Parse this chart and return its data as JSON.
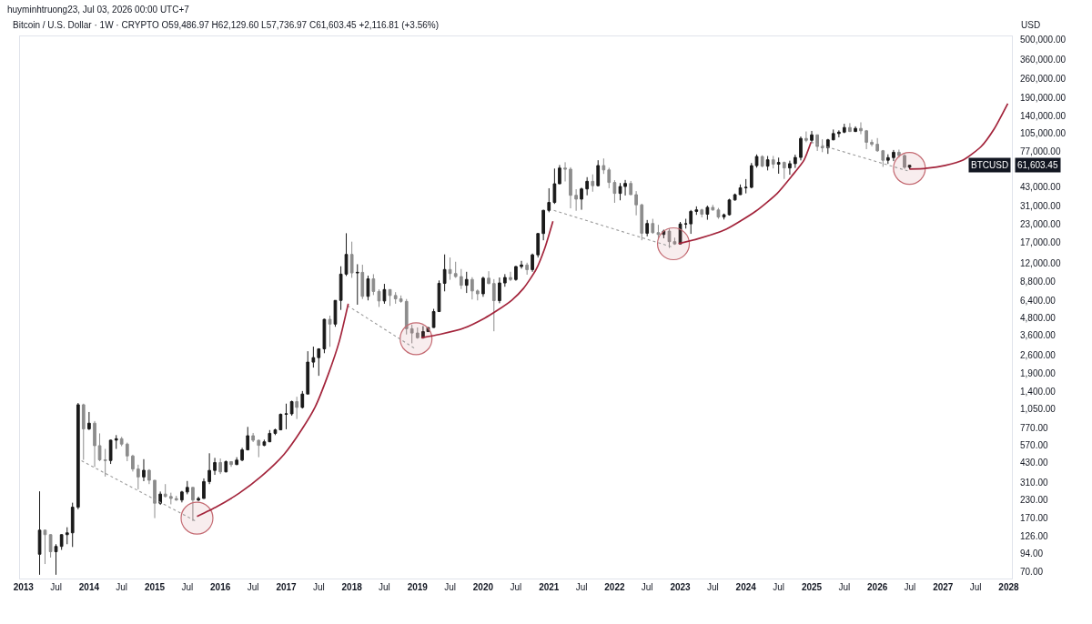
{
  "chart_data": {
    "type": "candlestick",
    "title": "huyminhtruong23, Jul 03, 2026 00:00 UTC+7",
    "subtitle": "Bitcoin / U.S. Dollar · 1W · CRYPTO O59,486.97 H62,129.60 L57,736.97 C61,603.45 +2,116.81 (+3.56%)",
    "ylabel": "USD",
    "log": true,
    "grid": false,
    "xlim": [
      "2012-12-13",
      "2028-01-19"
    ],
    "xticks": [
      {
        "value": "2013-01-01",
        "label": "2013"
      },
      {
        "value": "2013-07-01",
        "label": "Jul"
      },
      {
        "value": "2014-01-01",
        "label": "2014"
      },
      {
        "value": "2014-07-01",
        "label": "Jul"
      },
      {
        "value": "2015-01-01",
        "label": "2015"
      },
      {
        "value": "2015-07-01",
        "label": "Jul"
      },
      {
        "value": "2016-01-01",
        "label": "2016"
      },
      {
        "value": "2016-07-01",
        "label": "Jul"
      },
      {
        "value": "2017-01-01",
        "label": "2017"
      },
      {
        "value": "2017-07-01",
        "label": "Jul"
      },
      {
        "value": "2018-01-01",
        "label": "2018"
      },
      {
        "value": "2018-07-01",
        "label": "Jul"
      },
      {
        "value": "2019-01-01",
        "label": "2019"
      },
      {
        "value": "2019-07-01",
        "label": "Jul"
      },
      {
        "value": "2020-01-01",
        "label": "2020"
      },
      {
        "value": "2020-07-01",
        "label": "Jul"
      },
      {
        "value": "2021-01-01",
        "label": "2021"
      },
      {
        "value": "2021-07-01",
        "label": "Jul"
      },
      {
        "value": "2022-01-01",
        "label": "2022"
      },
      {
        "value": "2022-07-01",
        "label": "Jul"
      },
      {
        "value": "2023-01-01",
        "label": "2023"
      },
      {
        "value": "2023-07-01",
        "label": "Jul"
      },
      {
        "value": "2024-01-01",
        "label": "2024"
      },
      {
        "value": "2024-07-01",
        "label": "Jul"
      },
      {
        "value": "2025-01-01",
        "label": "2025"
      },
      {
        "value": "2025-07-01",
        "label": "Jul"
      },
      {
        "value": "2026-01-01",
        "label": "2026"
      },
      {
        "value": "2026-07-01",
        "label": "Jul"
      },
      {
        "value": "2027-01-01",
        "label": "2027"
      },
      {
        "value": "2027-07-01",
        "label": "Jul"
      },
      {
        "value": "2028-01-01",
        "label": "2028"
      }
    ],
    "ylim": [
      62,
      530000
    ],
    "yticks": [
      {
        "value": 70,
        "label": "70.00"
      },
      {
        "value": 94,
        "label": "94.00"
      },
      {
        "value": 126,
        "label": "126.00"
      },
      {
        "value": 170,
        "label": "170.00"
      },
      {
        "value": 230,
        "label": "230.00"
      },
      {
        "value": 310,
        "label": "310.00"
      },
      {
        "value": 430,
        "label": "430.00"
      },
      {
        "value": 570,
        "label": "570.00"
      },
      {
        "value": 770,
        "label": "770.00"
      },
      {
        "value": 1050,
        "label": "1,050.00"
      },
      {
        "value": 1400,
        "label": "1,400.00"
      },
      {
        "value": 1900,
        "label": "1,900.00"
      },
      {
        "value": 2600,
        "label": "2,600.00"
      },
      {
        "value": 3600,
        "label": "3,600.00"
      },
      {
        "value": 4800,
        "label": "4,800.00"
      },
      {
        "value": 6400,
        "label": "6,400.00"
      },
      {
        "value": 8800,
        "label": "8,800.00"
      },
      {
        "value": 12000,
        "label": "12,000.00"
      },
      {
        "value": 17000,
        "label": "17,000.00"
      },
      {
        "value": 23000,
        "label": "23,000.00"
      },
      {
        "value": 31000,
        "label": "31,000.00"
      },
      {
        "value": 43000,
        "label": "43,000.00"
      },
      {
        "value": 77000,
        "label": "77,000.00"
      },
      {
        "value": 105000,
        "label": "105,000.00"
      },
      {
        "value": 140000,
        "label": "140,000.00"
      },
      {
        "value": 190000,
        "label": "190,000.00"
      },
      {
        "value": 260000,
        "label": "260,000.00"
      },
      {
        "value": 360000,
        "label": "360,000.00"
      },
      {
        "value": 500000,
        "label": "500,000.00"
      }
    ],
    "annotations": [
      "BTCUSD",
      "61,603.45"
    ],
    "series": [
      {
        "type": "scatter",
        "marker": "circle",
        "color": "#c46a72",
        "x": [
          "2015-08-24",
          "2018-12-24",
          "2022-11-24",
          "2026-06-28"
        ],
        "values": [
          170,
          3400,
          16600,
          58500
        ]
      },
      {
        "type": "line",
        "line_style": "dotted",
        "color": "#9a9a9a",
        "x": [
          "2013-11-20",
          "2015-08-24"
        ],
        "values": [
          443,
          160
        ]
      },
      {
        "type": "line",
        "line_style": "dotted",
        "color": "#9a9a9a",
        "x": [
          "2017-12-07",
          "2018-12-18"
        ],
        "values": [
          5920,
          2885
        ]
      },
      {
        "type": "line",
        "line_style": "dotted",
        "color": "#9a9a9a",
        "x": [
          "2021-01-28",
          "2022-11-18"
        ],
        "values": [
          29000,
          15700
        ]
      },
      {
        "type": "line",
        "line_style": "dotted",
        "color": "#9a9a9a",
        "x": [
          "2024-12-28",
          "2026-06-18"
        ],
        "values": [
          90600,
          56100
        ]
      },
      {
        "type": "line",
        "line_style": "solid",
        "color": "#a3243b",
        "x": [
          "2015-08-24",
          "2015-12-12",
          "2016-04-15",
          "2016-08-17",
          "2016-12-19",
          "2017-03-29",
          "2017-06-11",
          "2017-08-24",
          "2017-10-23",
          "2017-12-12"
        ],
        "values": [
          175,
          206,
          258,
          343,
          491,
          748,
          1088,
          1894,
          3250,
          6100
        ]
      },
      {
        "type": "line",
        "line_style": "solid",
        "color": "#a3243b",
        "x": [
          "2019-01-22",
          "2019-05-07",
          "2019-09-18",
          "2020-01-10",
          "2020-03-15",
          "2020-06-08",
          "2020-08-12",
          "2020-10-21",
          "2020-12-09",
          "2021-01-23"
        ],
        "values": [
          3450,
          3660,
          4070,
          4800,
          5410,
          6470,
          7870,
          10780,
          15440,
          24200
        ]
      },
      {
        "type": "line",
        "line_style": "solid",
        "color": "#a3243b",
        "x": [
          "2022-12-23",
          "2023-04-03",
          "2023-09-13",
          "2024-02-24",
          "2024-06-23",
          "2024-09-11",
          "2024-11-19",
          "2024-12-28"
        ],
        "values": [
          16650,
          17950,
          21150,
          28550,
          38540,
          51250,
          67100,
          90600
        ]
      },
      {
        "type": "line",
        "line_style": "solid",
        "color": "#a3243b",
        "x": [
          "2026-06-28",
          "2026-10-05",
          "2027-01-13",
          "2027-04-22",
          "2027-07-31",
          "2027-10-13",
          "2027-12-27"
        ],
        "values": [
          57800,
          58600,
          61400,
          67100,
          84000,
          113500,
          172600
        ]
      },
      {
        "x": [
          "2013-04",
          "2013-05",
          "2013-06",
          "2013-07",
          "2013-08",
          "2013-09",
          "2013-10",
          "2013-11",
          "2013-12",
          "2014-01",
          "2014-02",
          "2014-03",
          "2014-04",
          "2014-05",
          "2014-06",
          "2014-07",
          "2014-08",
          "2014-09",
          "2014-10",
          "2014-11",
          "2014-12",
          "2015-01",
          "2015-02",
          "2015-03",
          "2015-04",
          "2015-05",
          "2015-06",
          "2015-07",
          "2015-08",
          "2015-09",
          "2015-10",
          "2015-11",
          "2015-12",
          "2016-01",
          "2016-02",
          "2016-03",
          "2016-04",
          "2016-05",
          "2016-06",
          "2016-07",
          "2016-08",
          "2016-09",
          "2016-10",
          "2016-11",
          "2016-12",
          "2017-01",
          "2017-02",
          "2017-03",
          "2017-04",
          "2017-05",
          "2017-06",
          "2017-07",
          "2017-08",
          "2017-09",
          "2017-10",
          "2017-11",
          "2017-12",
          "2018-01",
          "2018-02",
          "2018-03",
          "2018-04",
          "2018-05",
          "2018-06",
          "2018-07",
          "2018-08",
          "2018-09",
          "2018-10",
          "2018-11",
          "2018-12",
          "2019-01",
          "2019-02",
          "2019-03",
          "2019-04",
          "2019-05",
          "2019-06",
          "2019-07",
          "2019-08",
          "2019-09",
          "2019-10",
          "2019-11",
          "2019-12",
          "2020-01",
          "2020-02",
          "2020-03",
          "2020-04",
          "2020-05",
          "2020-06",
          "2020-07",
          "2020-08",
          "2020-09",
          "2020-10",
          "2020-11",
          "2020-12",
          "2021-01",
          "2021-02",
          "2021-03",
          "2021-04",
          "2021-05",
          "2021-06",
          "2021-07",
          "2021-08",
          "2021-09",
          "2021-10",
          "2021-11",
          "2021-12",
          "2022-01",
          "2022-02",
          "2022-03",
          "2022-04",
          "2022-05",
          "2022-06",
          "2022-07",
          "2022-08",
          "2022-09",
          "2022-10",
          "2022-11",
          "2022-12",
          "2023-01",
          "2023-02",
          "2023-03",
          "2023-04",
          "2023-05",
          "2023-06",
          "2023-07",
          "2023-08",
          "2023-09",
          "2023-10",
          "2023-11",
          "2023-12",
          "2024-01",
          "2024-02",
          "2024-03",
          "2024-04",
          "2024-05",
          "2024-06",
          "2024-07",
          "2024-08",
          "2024-09",
          "2024-10",
          "2024-11",
          "2024-12",
          "2025-01",
          "2025-02",
          "2025-03",
          "2025-04",
          "2025-05",
          "2025-06",
          "2025-07",
          "2025-08",
          "2025-09",
          "2025-10",
          "2025-11",
          "2025-12",
          "2026-01",
          "2026-02",
          "2026-03",
          "2026-04",
          "2026-05",
          "2026-06",
          "2026-06-29"
        ],
        "colors": [
          "#1a1a1a",
          "#8c8c8c",
          "#8c8c8c",
          "#1a1a1a",
          "#1a1a1a",
          "#1a1a1a",
          "#1a1a1a",
          "#1a1a1a",
          "#8c8c8c",
          "#1a1a1a",
          "#8c8c8c",
          "#8c8c8c",
          "#8c8c8c",
          "#1a1a1a",
          "#1a1a1a",
          "#8c8c8c",
          "#8c8c8c",
          "#8c8c8c",
          "#8c8c8c",
          "#1a1a1a",
          "#8c8c8c",
          "#8c8c8c",
          "#1a1a1a",
          "#8c8c8c",
          "#8c8c8c",
          "#8c8c8c",
          "#1a1a1a",
          "#1a1a1a",
          "#8c8c8c",
          "#1a1a1a",
          "#1a1a1a",
          "#1a1a1a",
          "#1a1a1a",
          "#8c8c8c",
          "#1a1a1a",
          "#8c8c8c",
          "#1a1a1a",
          "#1a1a1a",
          "#1a1a1a",
          "#8c8c8c",
          "#8c8c8c",
          "#1a1a1a",
          "#1a1a1a",
          "#1a1a1a",
          "#1a1a1a",
          "#1a1a1a",
          "#1a1a1a",
          "#8c8c8c",
          "#1a1a1a",
          "#1a1a1a",
          "#1a1a1a",
          "#1a1a1a",
          "#1a1a1a",
          "#8c8c8c",
          "#1a1a1a",
          "#1a1a1a",
          "#1a1a1a",
          "#8c8c8c",
          "#1a1a1a",
          "#8c8c8c",
          "#1a1a1a",
          "#8c8c8c",
          "#8c8c8c",
          "#1a1a1a",
          "#8c8c8c",
          "#8c8c8c",
          "#8c8c8c",
          "#8c8c8c",
          "#8c8c8c",
          "#8c8c8c",
          "#1a1a1a",
          "#1a1a1a",
          "#1a1a1a",
          "#1a1a1a",
          "#1a1a1a",
          "#8c8c8c",
          "#8c8c8c",
          "#8c8c8c",
          "#1a1a1a",
          "#8c8c8c",
          "#8c8c8c",
          "#1a1a1a",
          "#8c8c8c",
          "#8c8c8c",
          "#1a1a1a",
          "#1a1a1a",
          "#8c8c8c",
          "#1a1a1a",
          "#1a1a1a",
          "#8c8c8c",
          "#1a1a1a",
          "#1a1a1a",
          "#1a1a1a",
          "#1a1a1a",
          "#1a1a1a",
          "#1a1a1a",
          "#8c8c8c",
          "#8c8c8c",
          "#8c8c8c",
          "#1a1a1a",
          "#1a1a1a",
          "#8c8c8c",
          "#1a1a1a",
          "#8c8c8c",
          "#8c8c8c",
          "#8c8c8c",
          "#1a1a1a",
          "#1a1a1a",
          "#8c8c8c",
          "#8c8c8c",
          "#8c8c8c",
          "#1a1a1a",
          "#8c8c8c",
          "#8c8c8c",
          "#1a1a1a",
          "#8c8c8c",
          "#8c8c8c",
          "#1a1a1a",
          "#1a1a1a",
          "#1a1a1a",
          "#1a1a1a",
          "#8c8c8c",
          "#1a1a1a",
          "#8c8c8c",
          "#8c8c8c",
          "#1a1a1a",
          "#1a1a1a",
          "#1a1a1a",
          "#1a1a1a",
          "#1a1a1a",
          "#1a1a1a",
          "#1a1a1a",
          "#8c8c8c",
          "#1a1a1a",
          "#8c8c8c",
          "#1a1a1a",
          "#8c8c8c",
          "#1a1a1a",
          "#1a1a1a",
          "#1a1a1a",
          "#8c8c8c",
          "#1a1a1a",
          "#8c8c8c",
          "#8c8c8c",
          "#1a1a1a",
          "#1a1a1a",
          "#1a1a1a",
          "#1a1a1a",
          "#8c8c8c",
          "#1a1a1a",
          "#8c8c8c",
          "#8c8c8c",
          "#8c8c8c",
          "#8c8c8c",
          "#8c8c8c",
          "#1a1a1a",
          "#1a1a1a",
          "#8c8c8c",
          "#8c8c8c",
          "#1a1a1a"
        ],
        "ohlc": [
          [
            93,
            266,
            66,
            139
          ],
          [
            139,
            140,
            79,
            129
          ],
          [
            129,
            130,
            88,
            97
          ],
          [
            97,
            110,
            66,
            106
          ],
          [
            106,
            130,
            100,
            129
          ],
          [
            129,
            146,
            110,
            133
          ],
          [
            133,
            220,
            105,
            204
          ],
          [
            204,
            1163,
            197,
            1129
          ],
          [
            1129,
            1150,
            450,
            754
          ],
          [
            754,
            1000,
            740,
            830
          ],
          [
            830,
            860,
            400,
            570
          ],
          [
            570,
            700,
            440,
            450
          ],
          [
            450,
            540,
            340,
            445
          ],
          [
            445,
            630,
            420,
            625
          ],
          [
            625,
            680,
            540,
            640
          ],
          [
            640,
            660,
            565,
            585
          ],
          [
            585,
            600,
            440,
            480
          ],
          [
            480,
            490,
            370,
            386
          ],
          [
            386,
            415,
            275,
            338
          ],
          [
            338,
            455,
            315,
            378
          ],
          [
            378,
            385,
            300,
            320
          ],
          [
            320,
            320,
            170,
            218
          ],
          [
            218,
            265,
            212,
            254
          ],
          [
            254,
            300,
            240,
            244
          ],
          [
            244,
            260,
            214,
            236
          ],
          [
            236,
            247,
            227,
            230
          ],
          [
            230,
            268,
            221,
            263
          ],
          [
            263,
            316,
            253,
            284
          ],
          [
            284,
            285,
            162,
            230
          ],
          [
            230,
            243,
            225,
            236
          ],
          [
            236,
            330,
            236,
            313
          ],
          [
            313,
            502,
            300,
            377
          ],
          [
            377,
            465,
            350,
            430
          ],
          [
            430,
            460,
            355,
            368
          ],
          [
            368,
            445,
            365,
            437
          ],
          [
            437,
            440,
            400,
            416
          ],
          [
            416,
            470,
            412,
            448
          ],
          [
            448,
            550,
            440,
            531
          ],
          [
            531,
            780,
            530,
            673
          ],
          [
            673,
            705,
            605,
            624
          ],
          [
            624,
            630,
            470,
            573
          ],
          [
            573,
            630,
            565,
            608
          ],
          [
            608,
            740,
            605,
            700
          ],
          [
            700,
            757,
            680,
            742
          ],
          [
            742,
            975,
            740,
            963
          ],
          [
            963,
            1150,
            750,
            970
          ],
          [
            970,
            1210,
            940,
            1190
          ],
          [
            1190,
            1290,
            890,
            1080
          ],
          [
            1080,
            1420,
            1060,
            1350
          ],
          [
            1350,
            2760,
            1350,
            2300
          ],
          [
            2300,
            2980,
            2100,
            2480
          ],
          [
            2480,
            2900,
            1830,
            2870
          ],
          [
            2870,
            4750,
            2670,
            4700
          ],
          [
            4700,
            5000,
            2970,
            4340
          ],
          [
            4340,
            6470,
            4150,
            6450
          ],
          [
            6450,
            11400,
            5500,
            10000
          ],
          [
            10000,
            19800,
            9700,
            13900
          ],
          [
            13900,
            17200,
            9400,
            10200
          ],
          [
            10200,
            11800,
            6000,
            10300
          ],
          [
            10300,
            11700,
            6600,
            6900
          ],
          [
            6900,
            9750,
            6450,
            9240
          ],
          [
            9240,
            9990,
            7050,
            7490
          ],
          [
            7490,
            7760,
            5780,
            6390
          ],
          [
            6390,
            8500,
            6100,
            7730
          ],
          [
            7730,
            7760,
            5880,
            7000
          ],
          [
            7000,
            7400,
            6100,
            6620
          ],
          [
            6620,
            7000,
            6200,
            6340
          ],
          [
            6340,
            6600,
            3650,
            4020
          ],
          [
            4020,
            4300,
            3150,
            3740
          ],
          [
            3740,
            4100,
            3400,
            3460
          ],
          [
            3460,
            4200,
            3400,
            3830
          ],
          [
            3830,
            4100,
            3800,
            4100
          ],
          [
            4100,
            5600,
            4080,
            5350
          ],
          [
            5350,
            9000,
            5330,
            8570
          ],
          [
            8570,
            13900,
            7500,
            10800
          ],
          [
            10800,
            13200,
            9100,
            10100
          ],
          [
            10100,
            12300,
            9400,
            9600
          ],
          [
            9600,
            10900,
            7800,
            8300
          ],
          [
            8300,
            10400,
            7300,
            9150
          ],
          [
            9150,
            9500,
            6550,
            7550
          ],
          [
            7550,
            7750,
            6450,
            7200
          ],
          [
            7200,
            9600,
            6850,
            9350
          ],
          [
            9350,
            10500,
            8450,
            8550
          ],
          [
            8550,
            9200,
            3850,
            6420
          ],
          [
            6420,
            9450,
            6150,
            8630
          ],
          [
            8630,
            10000,
            8100,
            9450
          ],
          [
            9450,
            10400,
            8900,
            9140
          ],
          [
            9140,
            11450,
            8950,
            11350
          ],
          [
            11350,
            12480,
            10950,
            11650
          ],
          [
            11650,
            12100,
            9900,
            10780
          ],
          [
            10780,
            14100,
            10400,
            13800
          ],
          [
            13800,
            19900,
            13200,
            19700
          ],
          [
            19700,
            29300,
            17600,
            29000
          ],
          [
            29000,
            41950,
            28100,
            33100
          ],
          [
            33100,
            58300,
            32300,
            45200
          ],
          [
            45200,
            61800,
            45000,
            58800
          ],
          [
            58800,
            64800,
            47000,
            57700
          ],
          [
            57700,
            59600,
            30000,
            37300
          ],
          [
            37300,
            41300,
            28800,
            35000
          ],
          [
            35000,
            42400,
            29300,
            41500
          ],
          [
            41500,
            50500,
            37300,
            47100
          ],
          [
            47100,
            52900,
            39600,
            43800
          ],
          [
            43800,
            67000,
            43300,
            61300
          ],
          [
            61300,
            69000,
            53300,
            57000
          ],
          [
            57000,
            59100,
            42000,
            46200
          ],
          [
            46200,
            48000,
            32900,
            38500
          ],
          [
            38500,
            45800,
            34300,
            43200
          ],
          [
            43200,
            48200,
            37200,
            45500
          ],
          [
            45500,
            47400,
            37600,
            37700
          ],
          [
            37700,
            40000,
            26700,
            31800
          ],
          [
            31800,
            32400,
            17600,
            19800
          ],
          [
            19800,
            24700,
            18800,
            23300
          ],
          [
            23300,
            25200,
            19600,
            20000
          ],
          [
            20000,
            22800,
            18200,
            19400
          ],
          [
            19400,
            21000,
            18200,
            20500
          ],
          [
            20500,
            21500,
            15500,
            17200
          ],
          [
            17200,
            18400,
            16300,
            16550
          ],
          [
            16550,
            23900,
            16500,
            23100
          ],
          [
            23100,
            25200,
            21400,
            23150
          ],
          [
            23150,
            29200,
            19600,
            28500
          ],
          [
            28500,
            31000,
            26900,
            29250
          ],
          [
            29250,
            29800,
            25800,
            27200
          ],
          [
            27200,
            31400,
            24800,
            30500
          ],
          [
            30500,
            31800,
            28900,
            29200
          ],
          [
            29200,
            30200,
            25200,
            25950
          ],
          [
            25950,
            27500,
            24900,
            26960
          ],
          [
            26960,
            35200,
            26560,
            34500
          ],
          [
            34500,
            38400,
            34100,
            37700
          ],
          [
            37700,
            44700,
            37600,
            42300
          ],
          [
            42300,
            48900,
            38500,
            42600
          ],
          [
            42600,
            64000,
            41900,
            61200
          ],
          [
            61200,
            73800,
            59200,
            71300
          ],
          [
            71300,
            72700,
            59600,
            60700
          ],
          [
            60700,
            71900,
            56500,
            67500
          ],
          [
            67500,
            72000,
            58400,
            62700
          ],
          [
            62700,
            70000,
            53500,
            64600
          ],
          [
            64600,
            65600,
            49000,
            58900
          ],
          [
            58900,
            66500,
            52600,
            63300
          ],
          [
            63300,
            73600,
            58900,
            70200
          ],
          [
            70200,
            99600,
            66800,
            96400
          ],
          [
            96400,
            108300,
            90500,
            93400
          ],
          [
            93400,
            109300,
            89200,
            102400
          ],
          [
            102400,
            102700,
            78200,
            84300
          ],
          [
            84300,
            95000,
            76600,
            82500
          ],
          [
            82500,
            95700,
            74500,
            94200
          ],
          [
            94200,
            111900,
            93400,
            104600
          ],
          [
            104600,
            110400,
            98200,
            107100
          ],
          [
            107100,
            123200,
            105200,
            115700
          ],
          [
            115700,
            124500,
            107300,
            108200
          ],
          [
            108200,
            117900,
            107300,
            114000
          ],
          [
            114000,
            126200,
            103500,
            109500
          ],
          [
            109500,
            111000,
            80600,
            90400
          ],
          [
            90400,
            94600,
            84500,
            87500
          ],
          [
            87500,
            97000,
            77000,
            78500
          ],
          [
            78500,
            79500,
            60000,
            67000
          ],
          [
            67000,
            74000,
            63000,
            70000
          ],
          [
            70000,
            79500,
            66000,
            76500
          ],
          [
            76500,
            80000,
            70000,
            72500
          ],
          [
            72500,
            74000,
            58000,
            59486.97
          ],
          [
            59486.97,
            62129.6,
            57736.97,
            61603.45
          ]
        ]
      }
    ]
  }
}
